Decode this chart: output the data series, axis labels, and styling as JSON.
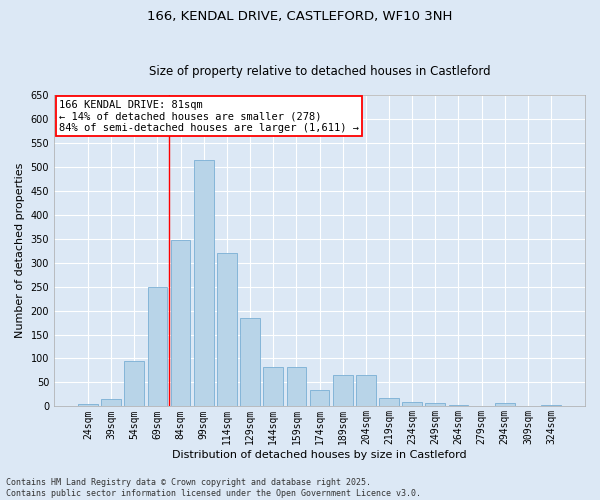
{
  "title_line1": "166, KENDAL DRIVE, CASTLEFORD, WF10 3NH",
  "title_line2": "Size of property relative to detached houses in Castleford",
  "xlabel": "Distribution of detached houses by size in Castleford",
  "ylabel": "Number of detached properties",
  "categories": [
    "24sqm",
    "39sqm",
    "54sqm",
    "69sqm",
    "84sqm",
    "99sqm",
    "114sqm",
    "129sqm",
    "144sqm",
    "159sqm",
    "174sqm",
    "189sqm",
    "204sqm",
    "219sqm",
    "234sqm",
    "249sqm",
    "264sqm",
    "279sqm",
    "294sqm",
    "309sqm",
    "324sqm"
  ],
  "values": [
    5,
    15,
    95,
    250,
    348,
    515,
    320,
    185,
    82,
    82,
    35,
    65,
    65,
    17,
    10,
    7,
    3,
    0,
    7,
    0,
    3
  ],
  "bar_color": "#b8d4e8",
  "bar_edge_color": "#7aafd4",
  "vline_color": "red",
  "annotation_text": "166 KENDAL DRIVE: 81sqm\n← 14% of detached houses are smaller (278)\n84% of semi-detached houses are larger (1,611) →",
  "annotation_box_color": "white",
  "annotation_box_edge": "red",
  "ylim": [
    0,
    650
  ],
  "yticks": [
    0,
    50,
    100,
    150,
    200,
    250,
    300,
    350,
    400,
    450,
    500,
    550,
    600,
    650
  ],
  "background_color": "#dce8f5",
  "grid_color": "white",
  "footer_line1": "Contains HM Land Registry data © Crown copyright and database right 2025.",
  "footer_line2": "Contains public sector information licensed under the Open Government Licence v3.0.",
  "title_fontsize": 9.5,
  "subtitle_fontsize": 8.5,
  "axis_label_fontsize": 8,
  "tick_fontsize": 7,
  "annotation_fontsize": 7.5,
  "footer_fontsize": 6
}
